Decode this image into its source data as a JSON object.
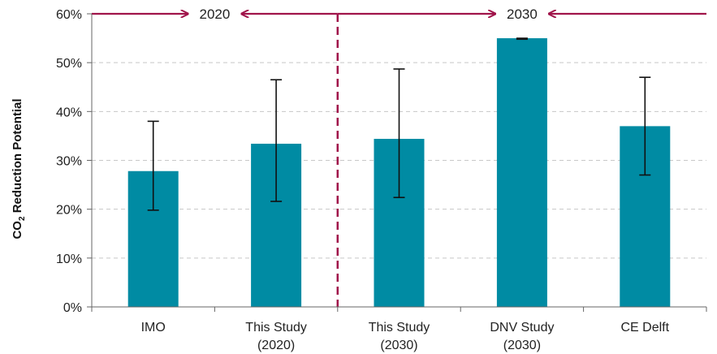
{
  "chart_data": {
    "type": "bar",
    "categories": [
      [
        "IMO"
      ],
      [
        "This Study",
        "(2020)"
      ],
      [
        "This Study",
        "(2030)"
      ],
      [
        "DNV Study",
        "(2030)"
      ],
      [
        "CE Delft"
      ]
    ],
    "values": [
      27.8,
      33.4,
      34.4,
      55.0,
      37.0
    ],
    "error_low": [
      19.8,
      21.6,
      22.4,
      54.8,
      27.0
    ],
    "error_high": [
      38.0,
      46.5,
      48.7,
      55.0,
      47.0
    ],
    "ylim": [
      0,
      60
    ],
    "yticks": [
      "0%",
      "10%",
      "20%",
      "30%",
      "40%",
      "50%",
      "60%"
    ],
    "ytick_values": [
      0,
      10,
      20,
      30,
      40,
      50,
      60
    ],
    "ylabel_main": "CO",
    "ylabel_sub": "2",
    "ylabel_rest": " Reduction Potential",
    "grid": true,
    "divider_after_category": 2,
    "periods": [
      {
        "label": "2020",
        "range": [
          0,
          2
        ]
      },
      {
        "label": "2030",
        "range": [
          2,
          5
        ]
      }
    ],
    "colors": {
      "bar": "#008ba3",
      "error": "#111111",
      "grid": "#c8c8c8",
      "axis": "#666666",
      "period": "#a0144a"
    }
  }
}
